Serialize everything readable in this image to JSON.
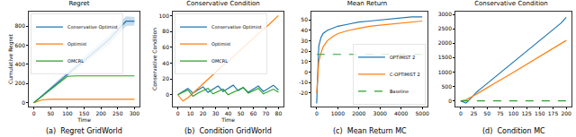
{
  "chart_data": [
    {
      "type": "line",
      "title": "Regret",
      "x_label": "Time",
      "y_label": "Cumulative Regret",
      "caption": "(a)  Regret GridWorld",
      "legend": "upper left",
      "grid": false,
      "x": [
        0,
        25,
        50,
        75,
        100,
        125,
        150,
        175,
        200,
        225,
        250,
        275,
        300
      ],
      "series": [
        {
          "name": "Conservative Optimist",
          "color": "#1f77b4",
          "line_style": "solid",
          "values": [
            0,
            75,
            150,
            225,
            300,
            370,
            440,
            515,
            590,
            660,
            760,
            850,
            850
          ],
          "lower": [
            0,
            65,
            135,
            205,
            275,
            340,
            405,
            475,
            545,
            610,
            705,
            800,
            805
          ],
          "upper": [
            0,
            85,
            165,
            245,
            325,
            400,
            475,
            555,
            635,
            710,
            815,
            900,
            895
          ]
        },
        {
          "name": "Optimist",
          "color": "#ff7f0e",
          "line_style": "solid",
          "values": [
            0,
            30,
            35,
            35,
            35,
            35,
            35,
            35,
            35,
            35,
            35,
            35,
            35
          ]
        },
        {
          "name": "OMCRL",
          "color": "#2ca02c",
          "line_style": "solid",
          "values": [
            0,
            70,
            140,
            210,
            275,
            280,
            280,
            280,
            280,
            280,
            280,
            280,
            280
          ]
        }
      ],
      "xlim": [
        -15,
        315
      ],
      "xticks": [
        0,
        50,
        100,
        150,
        200,
        250,
        300
      ],
      "ylim": [
        -40,
        950
      ],
      "yticks": [
        0,
        200,
        400,
        600,
        800
      ]
    },
    {
      "type": "line",
      "title": "Conservative Condition",
      "x_label": "Time",
      "y_label": "Conservative Condition",
      "caption": "(b)  Condition GridWorld",
      "legend": "upper left",
      "grid": false,
      "x": [
        0,
        4,
        8,
        12,
        16,
        20,
        24,
        28,
        32,
        36,
        40,
        44,
        48,
        52,
        56,
        60,
        64,
        68,
        72,
        76,
        80
      ],
      "series": [
        {
          "name": "Conservative Optimist",
          "color": "#1f77b4",
          "line_style": "solid",
          "values": [
            0,
            4,
            8,
            2,
            6,
            10,
            3,
            7,
            11,
            4,
            8,
            12,
            5,
            9,
            3,
            7,
            11,
            4,
            8,
            12,
            6
          ]
        },
        {
          "name": "Optimist",
          "color": "#ff7f0e",
          "line_style": "solid",
          "values": [
            0,
            -8,
            -4,
            2,
            8,
            14,
            19,
            25,
            31,
            37,
            42,
            48,
            54,
            60,
            65,
            71,
            77,
            83,
            88,
            94,
            100
          ]
        },
        {
          "name": "OMCRL",
          "color": "#2ca02c",
          "line_style": "solid",
          "values": [
            0,
            3,
            6,
            -2,
            2,
            5,
            8,
            1,
            4,
            7,
            0,
            3,
            6,
            9,
            2,
            5,
            8,
            1,
            4,
            7,
            3
          ]
        }
      ],
      "xlim": [
        -4,
        84
      ],
      "xticks": [
        0,
        10,
        20,
        30,
        40,
        50,
        60,
        70,
        80
      ],
      "ylim": [
        -15,
        105
      ],
      "yticks": [
        0,
        20,
        40,
        60,
        80,
        100
      ]
    },
    {
      "type": "line",
      "title": "Mean Return",
      "caption": "(c)  Mean Return MC",
      "legend": "lower right",
      "grid": false,
      "x": [
        0,
        50,
        100,
        200,
        300,
        500,
        750,
        1000,
        1500,
        2000,
        2500,
        3000,
        3500,
        4000,
        4500,
        5000
      ],
      "series": [
        {
          "name": "OPTIMIST 2",
          "color": "#1f77b4",
          "line_style": "solid",
          "values": [
            -30,
            10,
            25,
            33,
            37,
            40,
            42,
            44,
            46,
            48,
            49,
            50,
            51,
            52,
            53,
            53
          ]
        },
        {
          "name": "C-OPTIMIST 2",
          "color": "#ff7f0e",
          "line_style": "solid",
          "values": [
            -20,
            0,
            10,
            18,
            24,
            30,
            34,
            37,
            40,
            42,
            44,
            45,
            46,
            47,
            48,
            49
          ]
        },
        {
          "name": "Baseline",
          "color": "#2ca02c",
          "line_style": "dashed",
          "values": [
            17,
            17,
            17,
            17,
            17,
            17,
            17,
            17,
            17,
            17,
            17,
            17,
            17,
            17,
            17,
            17
          ]
        }
      ],
      "xlim": [
        -250,
        5250
      ],
      "xticks": [
        0,
        1000,
        2000,
        3000,
        4000,
        5000
      ],
      "ylim": [
        -33,
        58
      ],
      "yticks": [
        -20,
        -10,
        0,
        10,
        20,
        30,
        40,
        50
      ]
    },
    {
      "type": "line",
      "title": "Conservative Condition",
      "caption": "(d)  Condition MC",
      "grid": false,
      "x": [
        0,
        10,
        20,
        30,
        40,
        50,
        60,
        70,
        80,
        90,
        100,
        110,
        120,
        130,
        140,
        150,
        160,
        170,
        180,
        190,
        200
      ],
      "series": [
        {
          "color": "#1f77b4",
          "line_style": "solid",
          "values": [
            0,
            -80,
            100,
            300,
            450,
            600,
            750,
            900,
            1050,
            1200,
            1350,
            1500,
            1650,
            1800,
            1950,
            2100,
            2250,
            2400,
            2550,
            2700,
            2900
          ]
        },
        {
          "color": "#ff7f0e",
          "line_style": "solid",
          "values": [
            0,
            30,
            130,
            230,
            340,
            450,
            560,
            660,
            770,
            880,
            990,
            1100,
            1210,
            1320,
            1430,
            1540,
            1650,
            1760,
            1870,
            1980,
            2100
          ]
        },
        {
          "color": "#2ca02c",
          "line_style": "dashed",
          "values": [
            0,
            0,
            0,
            0,
            0,
            0,
            0,
            0,
            0,
            0,
            0,
            0,
            0,
            0,
            0,
            0,
            0,
            0,
            0,
            0,
            0
          ]
        }
      ],
      "xlim": [
        -10,
        210
      ],
      "xticks": [
        0,
        25,
        50,
        75,
        100,
        125,
        150,
        175,
        200
      ],
      "ylim": [
        -200,
        3100
      ],
      "yticks": [
        0,
        500,
        1000,
        1500,
        2000,
        2500,
        3000
      ]
    }
  ]
}
